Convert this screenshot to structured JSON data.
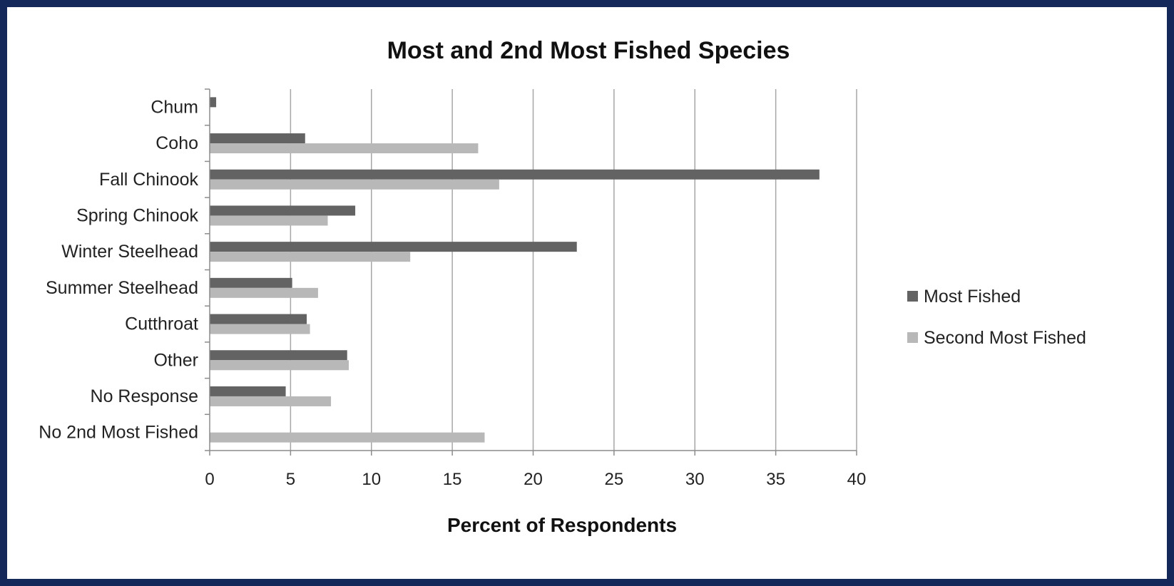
{
  "chart_data": {
    "type": "bar",
    "orientation": "horizontal",
    "title": "Most and 2nd Most Fished Species",
    "xlabel": "Percent of Respondents",
    "ylabel": "",
    "xlim": [
      0,
      40
    ],
    "x_ticks": [
      0,
      5,
      10,
      15,
      20,
      25,
      30,
      35,
      40
    ],
    "grid": "vertical",
    "legend_position": "right",
    "categories": [
      "Chum",
      "Coho",
      "Fall Chinook",
      "Spring Chinook",
      "Winter Steelhead",
      "Summer Steelhead",
      "Cutthroat",
      "Other",
      "No Response",
      "No 2nd Most Fished"
    ],
    "series": [
      {
        "name": "Most Fished",
        "color": "#636363",
        "values": [
          0.4,
          5.9,
          37.7,
          9.0,
          22.7,
          5.1,
          6.0,
          8.5,
          4.7,
          0
        ]
      },
      {
        "name": "Second Most Fished",
        "color": "#b8b8b8",
        "values": [
          0,
          16.6,
          17.9,
          7.3,
          12.4,
          6.7,
          6.2,
          8.6,
          7.5,
          17.0
        ]
      }
    ]
  }
}
